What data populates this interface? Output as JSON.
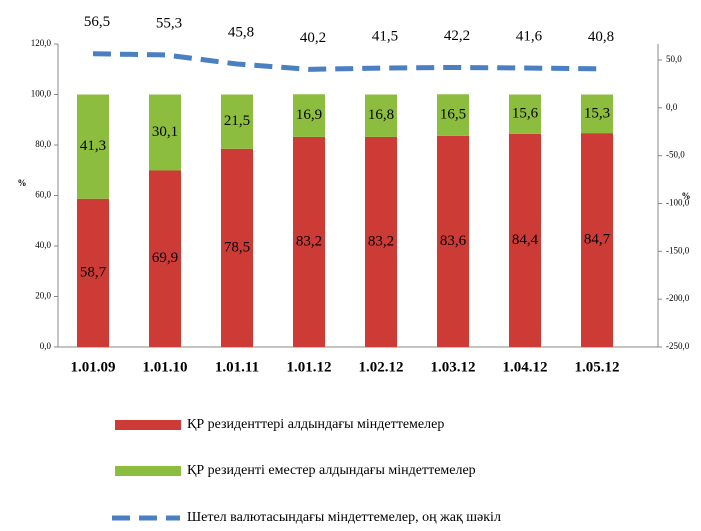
{
  "chart_data": {
    "type": "bar_line",
    "categories": [
      "1.01.09",
      "1.01.10",
      "1.01.11",
      "1.01.12",
      "1.02.12",
      "1.03.12",
      "1.04.12",
      "1.05.12"
    ],
    "y_label": "%",
    "y2_label": "%",
    "series": [
      {
        "name": "ҚР резиденттері алдындағы міндеттемелер",
        "color": "#cc3b36",
        "values": [
          58.7,
          69.9,
          78.5,
          83.2,
          83.2,
          83.6,
          84.4,
          84.7
        ],
        "value_labels": [
          "58,7",
          "69,9",
          "78,5",
          "83,2",
          "83,2",
          "83,6",
          "84,4",
          "84,7"
        ]
      },
      {
        "name": "ҚР резиденті еместер алдындағы міндеттемелер",
        "color": "#8dbd3f",
        "values": [
          41.3,
          30.1,
          21.5,
          16.9,
          16.8,
          16.5,
          15.6,
          15.3
        ],
        "value_labels": [
          "41,3",
          "30,1",
          "21,5",
          "16,9",
          "16,8",
          "16,5",
          "15,6",
          "15,3"
        ]
      },
      {
        "name": "Шетел валютасындағы міндеттемелер, оң жақ шәкіл",
        "color": "#4a7fc1",
        "axis": "y2",
        "values": [
          56.5,
          55.3,
          45.8,
          40.2,
          41.5,
          42.2,
          41.6,
          40.8
        ],
        "value_labels": [
          "56,5",
          "55,3",
          "45,8",
          "40,2",
          "41,5",
          "42,2",
          "41,6",
          "40,8"
        ]
      }
    ],
    "ylim": [
      0,
      120
    ],
    "yticks": [
      {
        "value": 0,
        "label": "0,0"
      },
      {
        "value": 20,
        "label": "20,0"
      },
      {
        "value": 40,
        "label": "40,0"
      },
      {
        "value": 60,
        "label": "60,0"
      },
      {
        "value": 80,
        "label": "80,0"
      },
      {
        "value": 100,
        "label": "100,0"
      },
      {
        "value": 120,
        "label": "120,0"
      }
    ],
    "y2lim": [
      -250,
      66.7
    ],
    "y2ticks": [
      {
        "value": -250,
        "label": "-250,0"
      },
      {
        "value": -200,
        "label": "-200,0"
      },
      {
        "value": -150,
        "label": "-150,0"
      },
      {
        "value": -100,
        "label": "-100,0"
      },
      {
        "value": -50,
        "label": "-50,0"
      },
      {
        "value": 0,
        "label": "0,0"
      },
      {
        "value": 50,
        "label": "50,0"
      }
    ]
  }
}
